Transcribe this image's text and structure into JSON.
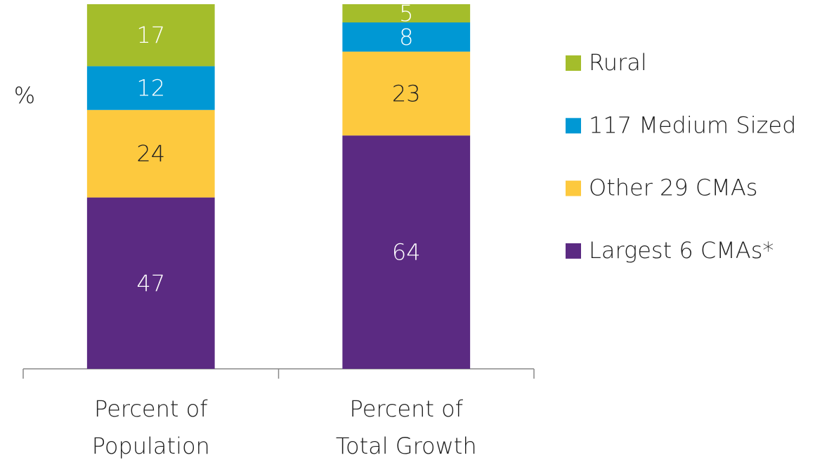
{
  "chart_data": {
    "type": "stacked_bar",
    "y_label": "%",
    "categories": [
      "Percent of Population",
      "Percent of Total Growth"
    ],
    "series": [
      {
        "name": "Largest 6 CMAs*",
        "color": "#5b2a82",
        "label_color": "#ffffff",
        "values": [
          47,
          64
        ]
      },
      {
        "name": "Other 29 CMAs",
        "color": "#fdc93e",
        "label_color": "#222222",
        "values": [
          24,
          23
        ]
      },
      {
        "name": "117 Medium Sized",
        "color": "#0098d4",
        "label_color": "#ffffff",
        "values": [
          12,
          8
        ]
      },
      {
        "name": "Rural",
        "color": "#a4bd2b",
        "label_color": "#ffffff",
        "values": [
          17,
          5
        ]
      }
    ],
    "ylim": [
      0,
      100
    ]
  }
}
